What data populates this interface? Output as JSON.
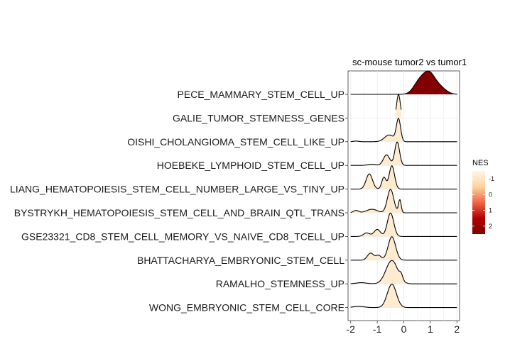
{
  "chart_data": {
    "type": "ridgeline",
    "title": "sc-mouse tumor2 vs tumor1",
    "xlabel": "",
    "ylabel": "",
    "xlim": [
      -2.1,
      2.1
    ],
    "x_ticks": [
      -2,
      -1,
      0,
      1,
      2
    ],
    "x_tick_labels": [
      "-2",
      "-1",
      "0",
      "1",
      "2"
    ],
    "grid": true,
    "fill_by": "NES",
    "legend": {
      "title": "NES",
      "placement": "right",
      "ticks": [
        -1,
        0,
        1,
        2
      ],
      "tick_labels": [
        "-1",
        "0",
        "1",
        "2"
      ],
      "range": [
        -1.5,
        2.5
      ],
      "colors": [
        "#fff5e6",
        "#fdd49e",
        "#ef6548",
        "#b30000",
        "#7f0000"
      ]
    },
    "categories": [
      "PECE_MAMMARY_STEM_CELL_UP",
      "GALIE_TUMOR_STEMNESS_GENES",
      "OISHI_CHOLANGIOMA_STEM_CELL_LIKE_UP",
      "HOEBEKE_LYMPHOID_STEM_CELL_UP",
      "LIANG_HEMATOPOIESIS_STEM_CELL_NUMBER_LARGE_VS_TINY_UP",
      "BYSTRYKH_HEMATOPOIESIS_STEM_CELL_AND_BRAIN_QTL_TRANS",
      "GSE23321_CD8_STEM_CELL_MEMORY_VS_NAIVE_CD8_TCELL_UP",
      "BHATTACHARYA_EMBRYONIC_STEM_CELL",
      "RAMALHO_STEMNESS_UP",
      "WONG_EMBRYONIC_STEM_CELL_CORE"
    ],
    "series": [
      {
        "nes": 2.4,
        "line_range": [
          -2.0,
          2.0
        ],
        "components": [
          [
            0.6,
            0.22,
            0.8
          ],
          [
            0.95,
            0.2,
            1.0
          ],
          [
            1.3,
            0.25,
            0.5
          ]
        ]
      },
      {
        "nes": -1.2,
        "line_range": [
          -0.3,
          -0.1
        ],
        "components": [
          [
            -0.2,
            0.07,
            1.0
          ]
        ]
      },
      {
        "nes": -1.2,
        "line_range": [
          -2.0,
          2.0
        ],
        "components": [
          [
            -0.2,
            0.08,
            1.0
          ],
          [
            -0.55,
            0.18,
            0.3
          ],
          [
            -1.8,
            0.1,
            0.03
          ]
        ]
      },
      {
        "nes": -1.2,
        "line_range": [
          -2.0,
          2.0
        ],
        "components": [
          [
            -0.25,
            0.09,
            1.0
          ],
          [
            -0.65,
            0.12,
            0.45
          ],
          [
            -1.2,
            0.15,
            0.05
          ]
        ]
      },
      {
        "nes": -1.2,
        "line_range": [
          -2.0,
          2.0
        ],
        "components": [
          [
            -0.45,
            0.1,
            1.0
          ],
          [
            -1.3,
            0.12,
            0.65
          ],
          [
            -0.75,
            0.08,
            0.5
          ]
        ]
      },
      {
        "nes": -1.2,
        "line_range": [
          -2.0,
          2.0
        ],
        "components": [
          [
            -0.5,
            0.12,
            1.0
          ],
          [
            -0.15,
            0.05,
            0.55
          ],
          [
            -1.2,
            0.2,
            0.15
          ],
          [
            -1.8,
            0.1,
            0.1
          ]
        ]
      },
      {
        "nes": -1.2,
        "line_range": [
          -2.0,
          2.0
        ],
        "components": [
          [
            -0.5,
            0.12,
            1.0
          ],
          [
            -1.0,
            0.12,
            0.3
          ],
          [
            -1.4,
            0.12,
            0.15
          ]
        ]
      },
      {
        "nes": -1.2,
        "line_range": [
          -2.0,
          2.0
        ],
        "components": [
          [
            -0.45,
            0.14,
            1.0
          ],
          [
            -1.25,
            0.12,
            0.3
          ],
          [
            -0.95,
            0.1,
            0.2
          ]
        ]
      },
      {
        "nes": -1.2,
        "line_range": [
          -2.0,
          2.0
        ],
        "components": [
          [
            -0.45,
            0.22,
            1.0
          ],
          [
            -1.6,
            0.2,
            0.05
          ],
          [
            -0.1,
            0.06,
            0.2
          ]
        ]
      },
      {
        "nes": -1.2,
        "line_range": [
          -2.0,
          2.0
        ],
        "components": [
          [
            -0.45,
            0.17,
            1.0
          ],
          [
            -1.7,
            0.2,
            0.05
          ]
        ]
      }
    ]
  }
}
